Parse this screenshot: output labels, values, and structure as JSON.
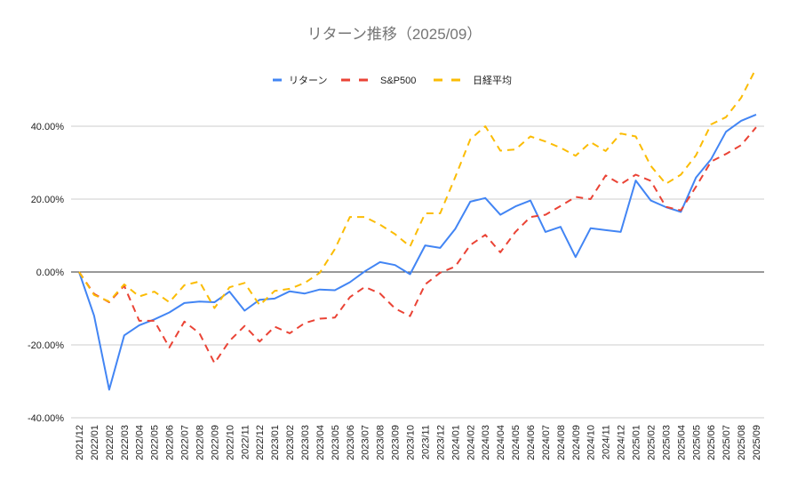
{
  "chart_data": {
    "type": "line",
    "title": "リターン推移（2025/09）",
    "xlabel": "",
    "ylabel": "",
    "ylim": [
      -40,
      60
    ],
    "yticks": [
      -40,
      -20,
      0,
      20,
      40
    ],
    "ytick_labels": [
      "-40.00%",
      "-20.00%",
      "0.00%",
      "20.00%",
      "40.00%"
    ],
    "grid": true,
    "legend_position": "top-center",
    "categories": [
      "2021/12",
      "2022/01",
      "2022/02",
      "2022/03",
      "2022/04",
      "2022/05",
      "2022/06",
      "2022/07",
      "2022/08",
      "2022/09",
      "2022/10",
      "2022/11",
      "2022/12",
      "2023/01",
      "2023/02",
      "2023/03",
      "2023/04",
      "2023/05",
      "2023/06",
      "2023/07",
      "2023/08",
      "2023/09",
      "2023/10",
      "2023/11",
      "2023/12",
      "2024/01",
      "2024/02",
      "2024/03",
      "2024/04",
      "2024/05",
      "2024/06",
      "2024/07",
      "2024/08",
      "2024/09",
      "2024/10",
      "2024/11",
      "2024/12",
      "2025/01",
      "2025/02",
      "2025/03",
      "2025/04",
      "2025/05",
      "2025/06",
      "2025/07",
      "2025/08",
      "2025/09"
    ],
    "series": [
      {
        "name": "リターン",
        "color": "#4285F4",
        "style": "solid",
        "values": [
          0,
          -12.0,
          -32.3,
          -17.4,
          -14.6,
          -13.0,
          -11.1,
          -8.5,
          -8.1,
          -8.3,
          -5.4,
          -10.6,
          -7.6,
          -7.3,
          -5.3,
          -5.9,
          -4.8,
          -5.0,
          -2.8,
          0.2,
          2.7,
          1.9,
          -0.6,
          7.3,
          6.6,
          11.8,
          19.3,
          20.3,
          15.7,
          18.0,
          19.6,
          11.0,
          12.4,
          4.1,
          12.0,
          11.5,
          11.0,
          25.1,
          19.6,
          17.8,
          16.5,
          25.9,
          30.9,
          38.5,
          41.5,
          43.2
        ]
      },
      {
        "name": "S&P500",
        "color": "#EA4335",
        "style": "dashed",
        "values": [
          0,
          -6.0,
          -8.3,
          -3.8,
          -13.4,
          -13.4,
          -20.7,
          -13.6,
          -16.8,
          -25.0,
          -18.9,
          -14.8,
          -19.1,
          -15.0,
          -16.8,
          -14.0,
          -12.8,
          -12.5,
          -6.9,
          -4.1,
          -5.9,
          -10.0,
          -12.1,
          -3.4,
          -0.2,
          1.5,
          7.4,
          10.2,
          5.4,
          11.0,
          15.1,
          15.7,
          18.1,
          20.6,
          20.0,
          26.5,
          24.1,
          26.7,
          25.0,
          17.9,
          16.9,
          23.4,
          30.3,
          32.4,
          34.8,
          39.7
        ]
      },
      {
        "name": "日経平均",
        "color": "#FBBC04",
        "style": "dashed",
        "values": [
          0,
          -6.3,
          -8.1,
          -3.4,
          -6.7,
          -5.4,
          -8.3,
          -3.6,
          -2.6,
          -9.9,
          -4.2,
          -3.0,
          -9.1,
          -5.2,
          -4.6,
          -3.0,
          -0.2,
          6.3,
          15.1,
          15.1,
          13.0,
          10.4,
          7.0,
          16.1,
          16.1,
          26.0,
          36.4,
          40.0,
          33.3,
          33.6,
          37.2,
          35.8,
          34.1,
          31.9,
          35.6,
          33.2,
          38.0,
          37.2,
          29.1,
          24.2,
          26.7,
          32.0,
          40.5,
          42.5,
          47.8,
          55.9
        ]
      }
    ]
  }
}
